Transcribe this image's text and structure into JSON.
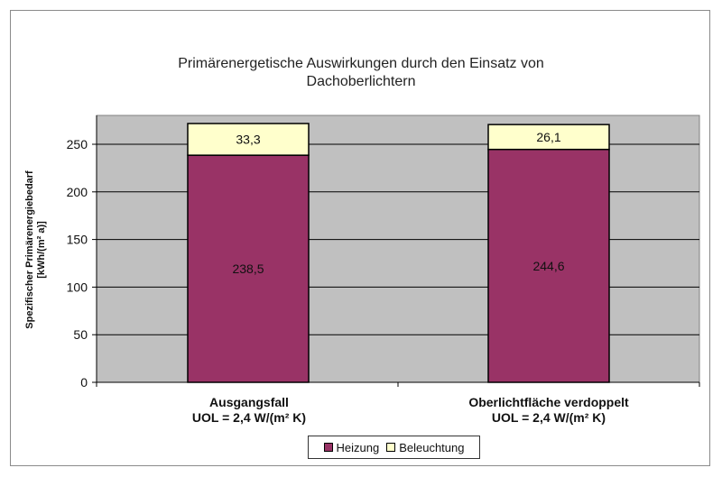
{
  "chart_data": {
    "type": "bar",
    "stacked": true,
    "title": [
      "Primärenergetische Auswirkungen durch den Einsatz von",
      "Dachoberlichtern"
    ],
    "ylabel": [
      "Spezifischer Primärenergiebedarf",
      "[kWh/(m² a)]"
    ],
    "xlabel": "",
    "ylim": [
      0,
      250
    ],
    "yticks": [
      "0",
      "50",
      "100",
      "150",
      "200",
      "250"
    ],
    "grid": true,
    "legend_position": "bottom",
    "categories": [
      [
        "Ausgangsfall",
        "UOL = 2,4 W/(m² K)"
      ],
      [
        "Oberlichtfläche verdoppelt",
        "UOL = 2,4 W/(m² K)"
      ]
    ],
    "series": [
      {
        "name": "Heizung",
        "values": [
          238.5,
          244.6
        ],
        "labels": [
          "238,5",
          "244,6"
        ],
        "color": "#993366"
      },
      {
        "name": "Beleuchtung",
        "values": [
          33.3,
          26.1
        ],
        "labels": [
          "33,3",
          "26,1"
        ],
        "color": "#ffffcc"
      }
    ],
    "plot_background": "#c0c0c0"
  }
}
